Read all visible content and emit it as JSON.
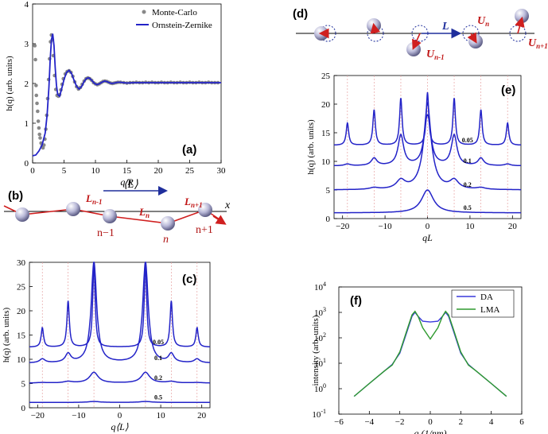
{
  "chart_data": [
    {
      "panel": "(a)",
      "type": "scatter",
      "xlabel": "q R",
      "ylabel": "h(q) (arb. units)",
      "xlim": [
        0,
        30
      ],
      "ylim": [
        0,
        4
      ],
      "xticks": [
        0,
        5,
        10,
        15,
        20,
        25,
        30
      ],
      "yticks": [
        0,
        1,
        2,
        3,
        4
      ],
      "legend_position": "top-right",
      "series": [
        {
          "name": "Monte-Carlo",
          "style": "markers",
          "color": "#888888",
          "points": [
            [
              0.35,
              2.95
            ],
            [
              0.45,
              2.6
            ],
            [
              0.55,
              1.95
            ],
            [
              0.6,
              1.7
            ],
            [
              0.7,
              1.5
            ],
            [
              0.8,
              1.3
            ],
            [
              0.9,
              1.05
            ],
            [
              1.0,
              0.88
            ],
            [
              1.1,
              0.72
            ],
            [
              1.2,
              0.63
            ],
            [
              1.35,
              0.5
            ],
            [
              1.5,
              0.42
            ],
            [
              1.65,
              0.38
            ],
            [
              1.8,
              0.45
            ],
            [
              1.95,
              0.6
            ],
            [
              2.1,
              0.85
            ],
            [
              2.25,
              1.2
            ],
            [
              2.4,
              1.62
            ],
            [
              2.55,
              2.1
            ],
            [
              2.7,
              2.62
            ],
            [
              2.85,
              3.05
            ],
            [
              3.0,
              3.22
            ],
            [
              3.15,
              3.1
            ],
            [
              3.3,
              2.7
            ],
            [
              3.5,
              2.2
            ],
            [
              3.7,
              1.85
            ],
            [
              3.9,
              1.7
            ],
            [
              4.1,
              1.68
            ],
            [
              4.3,
              1.72
            ],
            [
              4.5,
              1.84
            ],
            [
              4.7,
              1.98
            ],
            [
              4.9,
              2.12
            ],
            [
              5.2,
              2.24
            ],
            [
              5.5,
              2.3
            ],
            [
              5.8,
              2.32
            ],
            [
              6.1,
              2.28
            ],
            [
              6.4,
              2.18
            ],
            [
              6.7,
              2.04
            ],
            [
              7.0,
              1.92
            ],
            [
              7.3,
              1.86
            ],
            [
              7.6,
              1.9
            ],
            [
              7.9,
              1.98
            ],
            [
              8.2,
              2.06
            ],
            [
              8.5,
              2.12
            ],
            [
              8.8,
              2.14
            ],
            [
              9.1,
              2.12
            ],
            [
              9.4,
              2.08
            ],
            [
              9.7,
              2.02
            ],
            [
              10.0,
              1.99
            ],
            [
              10.3,
              1.97
            ],
            [
              10.6,
              1.99
            ],
            [
              10.9,
              2.02
            ],
            [
              11.2,
              2.05
            ],
            [
              11.5,
              2.06
            ],
            [
              11.8,
              2.05
            ],
            [
              12.1,
              2.03
            ],
            [
              12.4,
              2.01
            ],
            [
              12.7,
              2.0
            ],
            [
              13.0,
              2.01
            ],
            [
              13.3,
              2.02
            ],
            [
              13.6,
              2.03
            ],
            [
              14.0,
              2.03
            ],
            [
              14.5,
              2.02
            ],
            [
              15.0,
              2.01
            ],
            [
              15.5,
              2.02
            ],
            [
              16.0,
              2.02
            ],
            [
              16.5,
              2.03
            ],
            [
              17.0,
              2.02
            ],
            [
              17.5,
              2.02
            ],
            [
              18.0,
              2.03
            ],
            [
              18.5,
              2.02
            ],
            [
              19.0,
              2.03
            ],
            [
              19.5,
              2.02
            ],
            [
              20.0,
              2.02
            ],
            [
              20.5,
              2.03
            ],
            [
              21.0,
              2.02
            ],
            [
              21.5,
              2.02
            ],
            [
              22.0,
              2.03
            ],
            [
              22.5,
              2.02
            ],
            [
              23.0,
              2.02
            ],
            [
              23.5,
              2.03
            ],
            [
              24.0,
              2.02
            ],
            [
              24.5,
              2.02
            ],
            [
              25.0,
              2.03
            ],
            [
              25.5,
              2.02
            ],
            [
              26.0,
              2.02
            ],
            [
              26.5,
              2.03
            ],
            [
              27.0,
              2.02
            ],
            [
              27.5,
              2.02
            ],
            [
              28.0,
              2.03
            ],
            [
              28.5,
              2.02
            ],
            [
              29.0,
              2.02
            ],
            [
              29.5,
              2.02
            ]
          ]
        },
        {
          "name": "Ornstein-Zernike",
          "style": "line",
          "color": "#2323c8",
          "points": [
            [
              0,
              0.18
            ],
            [
              0.5,
              0.2
            ],
            [
              1.0,
              0.3
            ],
            [
              1.5,
              0.45
            ],
            [
              2.0,
              0.75
            ],
            [
              2.3,
              1.2
            ],
            [
              2.6,
              1.9
            ],
            [
              2.8,
              2.6
            ],
            [
              3.0,
              3.1
            ],
            [
              3.2,
              3.25
            ],
            [
              3.4,
              2.95
            ],
            [
              3.6,
              2.4
            ],
            [
              3.8,
              1.95
            ],
            [
              4.0,
              1.72
            ],
            [
              4.3,
              1.68
            ],
            [
              4.6,
              1.85
            ],
            [
              5.0,
              2.1
            ],
            [
              5.4,
              2.28
            ],
            [
              5.8,
              2.33
            ],
            [
              6.2,
              2.25
            ],
            [
              6.6,
              2.08
            ],
            [
              7.0,
              1.93
            ],
            [
              7.4,
              1.86
            ],
            [
              7.8,
              1.92
            ],
            [
              8.2,
              2.05
            ],
            [
              8.6,
              2.13
            ],
            [
              9.0,
              2.14
            ],
            [
              9.4,
              2.08
            ],
            [
              9.8,
              2.01
            ],
            [
              10.2,
              1.97
            ],
            [
              10.6,
              1.99
            ],
            [
              11.0,
              2.03
            ],
            [
              11.4,
              2.06
            ],
            [
              11.8,
              2.05
            ],
            [
              12.2,
              2.02
            ],
            [
              12.6,
              2.0
            ],
            [
              13.0,
              2.01
            ],
            [
              13.5,
              2.03
            ],
            [
              14.0,
              2.03
            ],
            [
              15.0,
              2.01
            ],
            [
              16.0,
              2.02
            ],
            [
              18.0,
              2.02
            ],
            [
              20.0,
              2.02
            ],
            [
              22.0,
              2.02
            ],
            [
              24.0,
              2.02
            ],
            [
              26.0,
              2.02
            ],
            [
              28.0,
              2.02
            ],
            [
              30.0,
              2.02
            ]
          ]
        }
      ]
    },
    {
      "panel": "(c)",
      "type": "line",
      "xlabel": "q⟨L⟩",
      "ylabel": "h(q) (arb. units)",
      "xlim": [
        -22,
        22
      ],
      "ylim": [
        0,
        30
      ],
      "xticks": [
        -20,
        -10,
        0,
        10,
        20
      ],
      "yticks": [
        0,
        5,
        10,
        15,
        20,
        25,
        30
      ],
      "curve_labels": [
        "0.05",
        "0.1",
        "0.2",
        "0.5"
      ],
      "series": [
        {
          "name": "0.05",
          "baseline": 12.5,
          "peaks": [
            {
              "x": 6.28,
              "y": 30
            },
            {
              "x": 12.57,
              "y": 22
            },
            {
              "x": 18.85,
              "y": 16.5
            }
          ]
        },
        {
          "name": "0.1",
          "baseline": 9.2,
          "peaks": [
            {
              "x": 6.28,
              "y": 30
            },
            {
              "x": 12.57,
              "y": 11
            },
            {
              "x": 18.85,
              "y": 10
            }
          ]
        },
        {
          "name": "0.2",
          "baseline": 5.1,
          "peaks": [
            {
              "x": 6.28,
              "y": 7.3
            },
            {
              "x": 12.57,
              "y": 5.4
            },
            {
              "x": 18.85,
              "y": 5.2
            }
          ]
        },
        {
          "name": "0.5",
          "baseline": 1.1,
          "peaks": [
            {
              "x": 6.28,
              "y": 1.3
            }
          ]
        }
      ]
    },
    {
      "panel": "(e)",
      "type": "line",
      "xlabel": "qL",
      "ylabel": "h(q) (arb. units)",
      "xlim": [
        -22,
        22
      ],
      "ylim": [
        0,
        25
      ],
      "xticks": [
        -20,
        -10,
        0,
        10,
        20
      ],
      "yticks": [
        0,
        5,
        10,
        15,
        20,
        25
      ],
      "curve_labels": [
        "0.05",
        "0.1",
        "0.2",
        "0.5"
      ],
      "series": [
        {
          "name": "0.05",
          "baseline": 12.8,
          "peaks": [
            {
              "x": 0,
              "y": 22
            },
            {
              "x": 6.28,
              "y": 21
            },
            {
              "x": 12.57,
              "y": 19
            },
            {
              "x": 18.85,
              "y": 16.7
            }
          ]
        },
        {
          "name": "0.1",
          "baseline": 9.2,
          "peaks": [
            {
              "x": 0,
              "y": 20
            },
            {
              "x": 6.28,
              "y": 14.5
            },
            {
              "x": 12.57,
              "y": 10.5
            },
            {
              "x": 18.85,
              "y": 9.5
            }
          ]
        },
        {
          "name": "0.2",
          "baseline": 5.0,
          "peaks": [
            {
              "x": 0,
              "y": 18
            },
            {
              "x": 6.28,
              "y": 6.5
            },
            {
              "x": 12.57,
              "y": 5.3
            }
          ]
        },
        {
          "name": "0.5",
          "baseline": 1.0,
          "peaks": [
            {
              "x": 0,
              "y": 5
            }
          ]
        }
      ]
    },
    {
      "panel": "(f)",
      "type": "line",
      "xlabel": "q (1/nm)",
      "ylabel": "intensity (arb. units)",
      "xlim": [
        -6,
        6
      ],
      "ylim": [
        0.1,
        10000
      ],
      "log_y": true,
      "xticks": [
        -6,
        -4,
        -2,
        0,
        2,
        4,
        6
      ],
      "yticks": [
        "10^-1",
        "10^0",
        "10^1",
        "10^2",
        "10^3",
        "10^4"
      ],
      "legend_position": "top-right",
      "series": [
        {
          "name": "DA",
          "color": "#3a3adc",
          "points": [
            [
              -5,
              0.5
            ],
            [
              -4,
              1.6
            ],
            [
              -3,
              5
            ],
            [
              -2.5,
              9
            ],
            [
              -2,
              25
            ],
            [
              -1.5,
              200
            ],
            [
              -1.2,
              700
            ],
            [
              -1,
              1000
            ],
            [
              -0.8,
              700
            ],
            [
              -0.5,
              450
            ],
            [
              0,
              420
            ],
            [
              0.5,
              450
            ],
            [
              0.8,
              700
            ],
            [
              1,
              1000
            ],
            [
              1.2,
              700
            ],
            [
              1.5,
              200
            ],
            [
              2,
              25
            ],
            [
              2.5,
              9
            ],
            [
              3,
              5
            ],
            [
              4,
              1.6
            ],
            [
              5,
              0.5
            ]
          ]
        },
        {
          "name": "LMA",
          "color": "#2e9a2e",
          "points": [
            [
              -5,
              0.5
            ],
            [
              -4,
              1.6
            ],
            [
              -3,
              5
            ],
            [
              -2.5,
              8.5
            ],
            [
              -2,
              28
            ],
            [
              -1.5,
              230
            ],
            [
              -1.2,
              800
            ],
            [
              -1,
              1100
            ],
            [
              -0.8,
              700
            ],
            [
              -0.5,
              250
            ],
            [
              0,
              90
            ],
            [
              0.5,
              250
            ],
            [
              0.8,
              700
            ],
            [
              1,
              1100
            ],
            [
              1.2,
              800
            ],
            [
              1.5,
              230
            ],
            [
              2,
              28
            ],
            [
              2.5,
              8.5
            ],
            [
              3,
              5
            ],
            [
              4,
              1.6
            ],
            [
              5,
              0.5
            ]
          ]
        }
      ]
    }
  ],
  "panel_labels": {
    "a": "(a)",
    "b": "(b)",
    "c": "(c)",
    "d": "(d)",
    "e": "(e)",
    "f": "(f)"
  },
  "diagram_b": {
    "mean_spacing": "⟨L⟩",
    "axis_label": "x",
    "segment_labels": [
      "L",
      "n-1",
      "L",
      "n",
      "L",
      "n+1"
    ],
    "site_labels": [
      "n−1",
      "n",
      "n+1"
    ]
  },
  "diagram_d": {
    "spacing": "L",
    "displacements": [
      "U",
      "n",
      "U",
      "n-1",
      "U",
      "n+1"
    ]
  }
}
